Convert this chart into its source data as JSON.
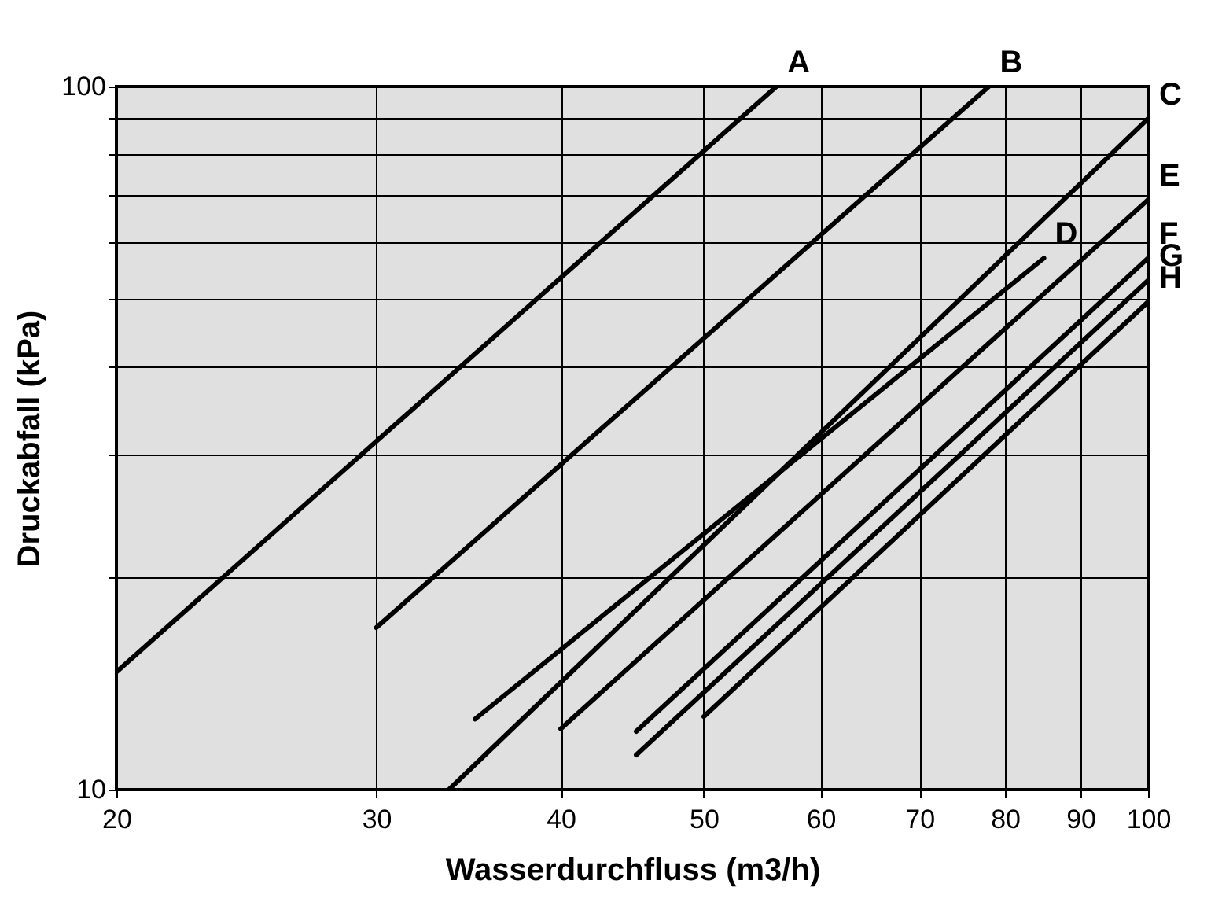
{
  "chart_data": {
    "type": "line",
    "xlabel": "Wasserdurchfluss (m3/h)",
    "ylabel": "Druckabfall (kPa)",
    "log": "xy",
    "grid": true,
    "legend": false,
    "xlim": [
      20,
      100
    ],
    "ylim": [
      10,
      100
    ],
    "xticks": [
      20,
      30,
      40,
      50,
      60,
      70,
      80,
      90,
      100
    ],
    "yticks": [
      10,
      {
        "value": 20,
        "label": null
      },
      {
        "value": 30,
        "label": null
      },
      {
        "value": 40,
        "label": null
      },
      {
        "value": 50,
        "label": null
      },
      {
        "value": 60,
        "label": null
      },
      {
        "value": 70,
        "label": null
      },
      {
        "value": 80,
        "label": null
      },
      {
        "value": 90,
        "label": null
      },
      100
    ],
    "series": [
      {
        "name": "A",
        "color": "#000000",
        "x": [
          20,
          56
        ],
        "values": [
          14.7,
          100
        ]
      },
      {
        "name": "B",
        "color": "#000000",
        "x": [
          30,
          78
        ],
        "values": [
          17,
          100
        ]
      },
      {
        "name": "C",
        "color": "#000000",
        "x": [
          33.6,
          100
        ],
        "values": [
          10,
          90
        ]
      },
      {
        "name": "D",
        "color": "#000000",
        "x": [
          35,
          85
        ],
        "values": [
          12.6,
          57
        ]
      },
      {
        "name": "E",
        "color": "#000000",
        "x": [
          40,
          100
        ],
        "values": [
          12.2,
          69
        ]
      },
      {
        "name": "F",
        "color": "#000000",
        "x": [
          45,
          100
        ],
        "values": [
          12.1,
          57
        ]
      },
      {
        "name": "G",
        "color": "#000000",
        "x": [
          45,
          100
        ],
        "values": [
          11.2,
          53
        ]
      },
      {
        "name": "H",
        "color": "#000000",
        "x": [
          50,
          100
        ],
        "values": [
          12.7,
          49.4
        ]
      }
    ]
  }
}
